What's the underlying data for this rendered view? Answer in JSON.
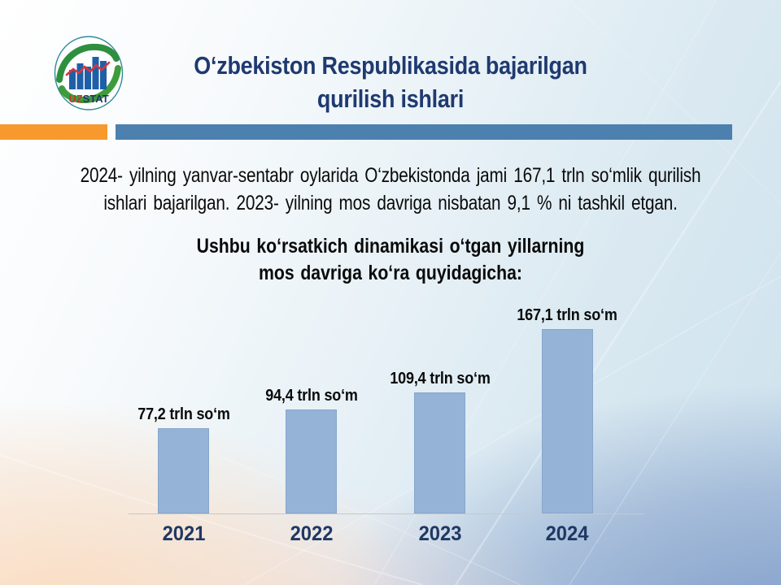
{
  "slide": {
    "logo": {
      "text_uz": "UZ",
      "text_stat": "STAT"
    },
    "title": {
      "line1": "O‘zbekiston Respublikasida bajarilgan",
      "line2": "qurilish ishlari"
    },
    "paragraph": {
      "line1": "2024- yilning yanvar-sentabr oylarida O‘zbekistonda jami 167,1 trln so‘mlik qurilish",
      "line2": "ishlari bajarilgan. 2023- yilning mos davriga nisbatan 9,1 % ni tashkil etgan."
    },
    "chart_heading": {
      "line1": "Ushbu ko‘rsatkich dinamikasi o‘tgan yillarning",
      "line2": "mos davriga ko‘ra quyidagicha:"
    }
  },
  "chart_data": {
    "type": "bar",
    "title": "Ushbu ko‘rsatkich dinamikasi o‘tgan yillarning mos davriga ko‘ra quyidagicha:",
    "categories": [
      "2021",
      "2022",
      "2023",
      "2024"
    ],
    "values": [
      77.2,
      94.4,
      109.4,
      167.1
    ],
    "value_labels": [
      "77,2 trln so‘m",
      "94,4 trln so‘m",
      "109,4 trln so‘m",
      "167,1 trln so‘m"
    ],
    "unit": "trln so‘m",
    "xlabel": "",
    "ylabel": "",
    "ylim": [
      0,
      180
    ],
    "grid": false,
    "legend": false,
    "bar_color": "#95B3D7"
  },
  "colors": {
    "accent_orange": "#F8992E",
    "divider_blue": "#4C80AF",
    "bar_fill": "#95B3D7",
    "title_navy": "#1F3A70",
    "year_navy": "#1F3864",
    "axis_gray": "#C8C8C8",
    "logo_green": "#2E8F3F",
    "logo_teal": "#2E8B95",
    "logo_bar_blue": "#1F5FA8",
    "logo_red": "#D9363C"
  }
}
